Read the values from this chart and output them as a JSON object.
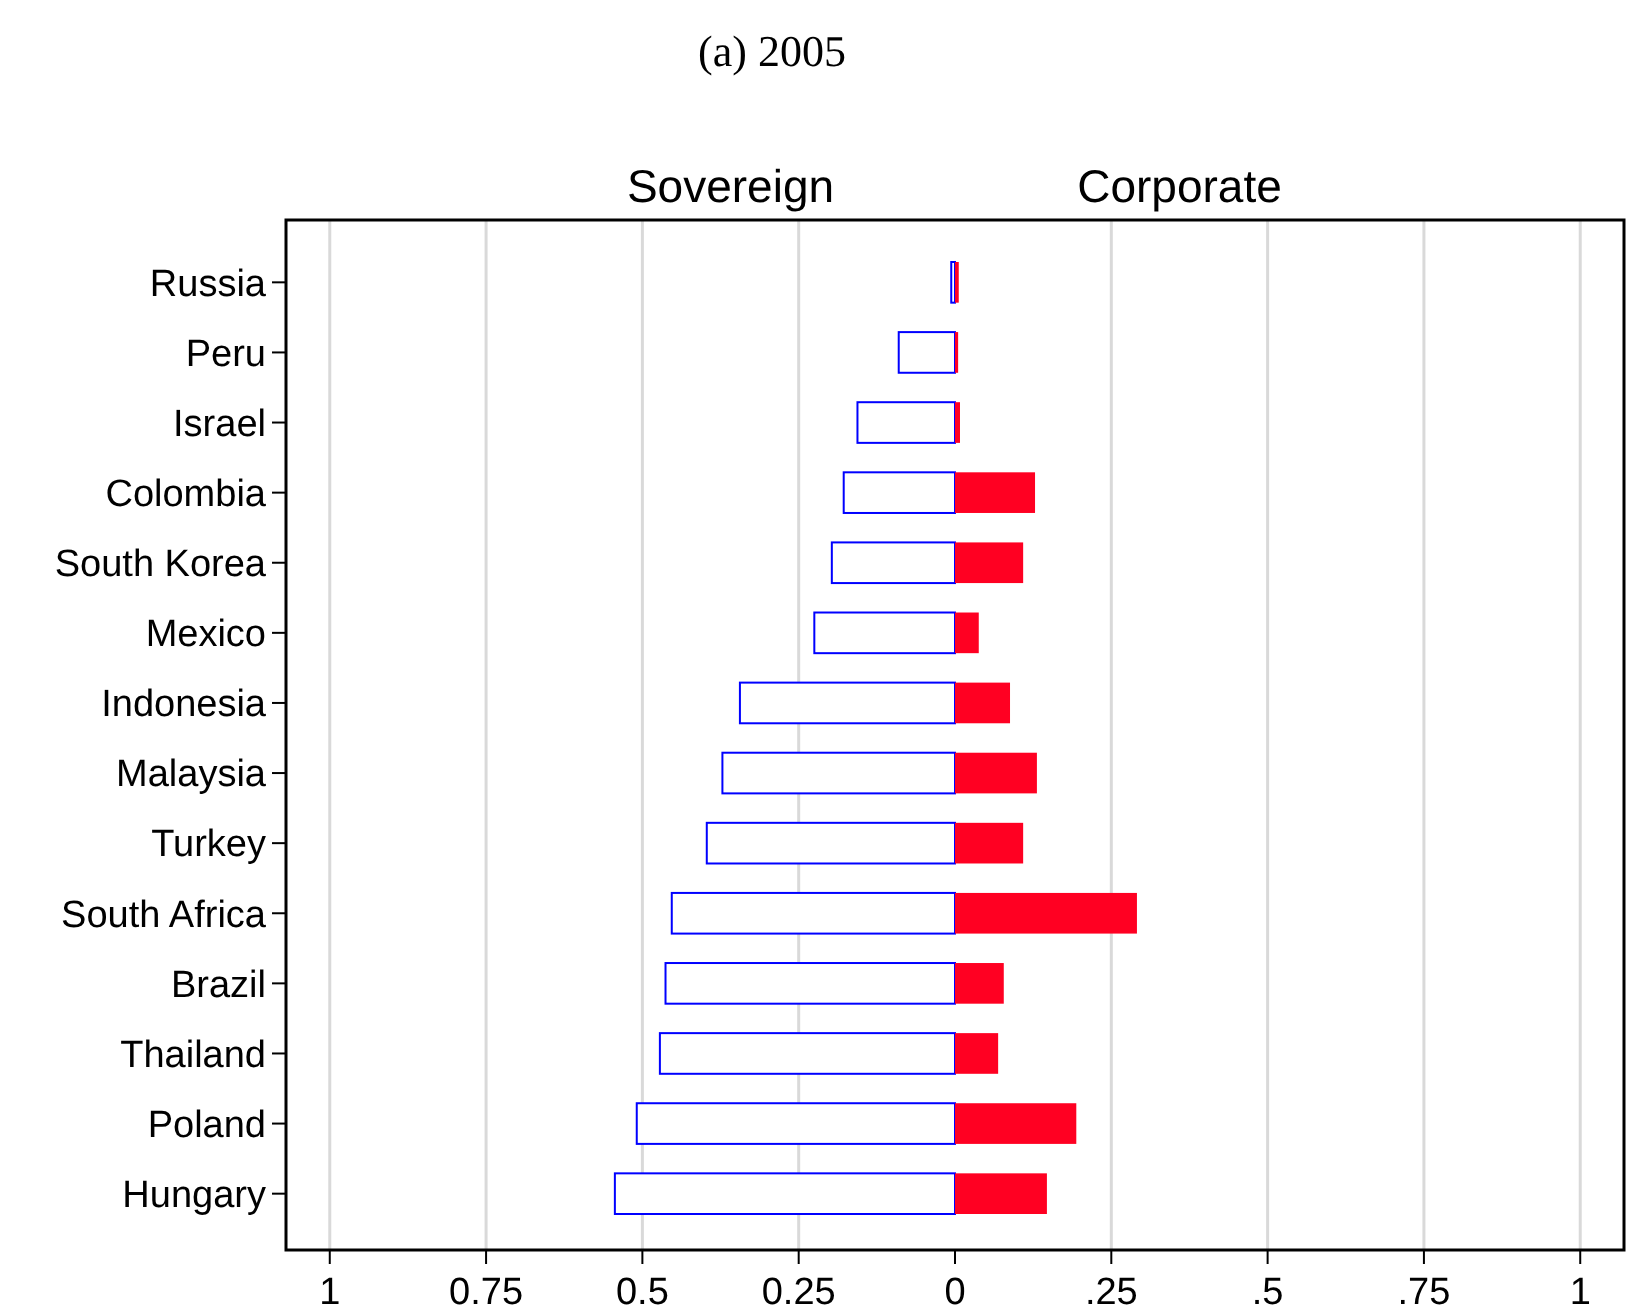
{
  "chart_data": {
    "type": "bar",
    "title": "(a) 2005",
    "orientation": "horizontal",
    "stacked": true,
    "legend": "top",
    "grid": "x",
    "categories": [
      "Russia",
      "Peru",
      "Israel",
      "Colombia",
      "South Korea",
      "Mexico",
      "Indonesia",
      "Malaysia",
      "Turkey",
      "South Africa",
      "Brazil",
      "Thailand",
      "Poland",
      "Hungary"
    ],
    "series": [
      {
        "name": "Sovereign",
        "color": "#0000ff",
        "values": [
          -0.006,
          -0.09,
          -0.156,
          -0.178,
          -0.197,
          -0.225,
          -0.344,
          -0.372,
          -0.397,
          -0.453,
          -0.463,
          -0.472,
          -0.509,
          -0.544
        ]
      },
      {
        "name": "Corporate",
        "color": "#ff0022",
        "values": [
          0.006,
          0.005,
          0.008,
          0.128,
          0.109,
          0.038,
          0.088,
          0.131,
          0.109,
          0.291,
          0.078,
          0.069,
          0.194,
          0.147
        ]
      }
    ],
    "xlim": [
      -1.07,
      1.07
    ],
    "xticks": [
      {
        "value": -1,
        "label": "1"
      },
      {
        "value": -0.75,
        "label": "0.75"
      },
      {
        "value": -0.5,
        "label": "0.5"
      },
      {
        "value": -0.25,
        "label": "0.25"
      },
      0,
      {
        "value": 0.25,
        "label": ".25"
      },
      {
        "value": 0.5,
        "label": ".5"
      },
      {
        "value": 0.75,
        "label": ".75"
      },
      1
    ]
  }
}
